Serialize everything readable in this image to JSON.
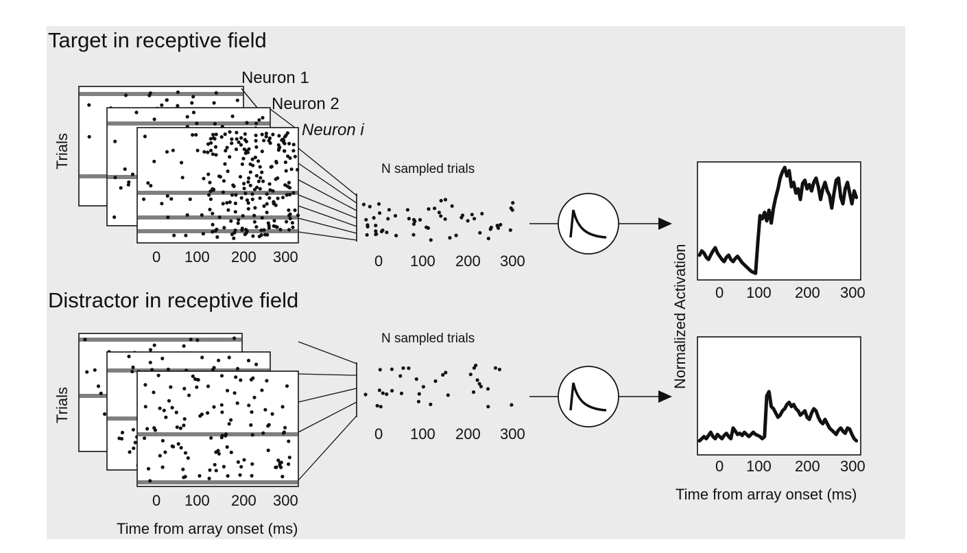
{
  "sections": {
    "top": {
      "title": "Target in receptive field",
      "neurons": [
        "Neuron 1",
        "Neuron 2",
        "Neuron i"
      ],
      "sampled_label": "N sampled trials"
    },
    "bottom": {
      "title": "Distractor in receptive field",
      "sampled_label": "N sampled trials"
    }
  },
  "raster": {
    "ylabel": "Trials",
    "xlabel": "Time from array onset (ms)",
    "xticks": [
      "0",
      "100",
      "200",
      "300"
    ]
  },
  "activation": {
    "ylabel": "Normalized Activation",
    "xlabel": "Time from array onset (ms)",
    "xticks": [
      "0",
      "100",
      "200",
      "300"
    ]
  },
  "chart_data": [
    {
      "type": "line",
      "panel": "target",
      "x": [
        -50,
        -45,
        -40,
        -35,
        -30,
        -25,
        -20,
        -15,
        -10,
        -5,
        0,
        5,
        10,
        15,
        20,
        25,
        30,
        35,
        40,
        45,
        50,
        55,
        60,
        65,
        70,
        75,
        80,
        85,
        90,
        95,
        100,
        105,
        110,
        115,
        120,
        125,
        130,
        135,
        140,
        145,
        150,
        155,
        160,
        165,
        170,
        175,
        180,
        185,
        190,
        195,
        200,
        205,
        210,
        215,
        220,
        225,
        230,
        235,
        240,
        245,
        250,
        255,
        260,
        265,
        270,
        275,
        280,
        285,
        290,
        295,
        300
      ],
      "y": [
        0.18,
        0.22,
        0.2,
        0.16,
        0.14,
        0.18,
        0.22,
        0.25,
        0.2,
        0.17,
        0.14,
        0.12,
        0.16,
        0.18,
        0.14,
        0.12,
        0.15,
        0.17,
        0.14,
        0.11,
        0.09,
        0.07,
        0.05,
        0.03,
        0.02,
        0.01,
        0.3,
        0.55,
        0.52,
        0.58,
        0.5,
        0.6,
        0.48,
        0.62,
        0.72,
        0.8,
        0.9,
        0.96,
        1.0,
        0.92,
        0.97,
        0.82,
        0.86,
        0.76,
        0.8,
        0.7,
        0.85,
        0.88,
        0.8,
        0.84,
        0.78,
        0.86,
        0.9,
        0.82,
        0.7,
        0.8,
        0.86,
        0.78,
        0.74,
        0.62,
        0.76,
        0.88,
        0.9,
        0.72,
        0.66,
        0.8,
        0.86,
        0.76,
        0.66,
        0.78,
        0.72
      ],
      "xlim": [
        -50,
        305
      ],
      "xticks": [
        0,
        100,
        200,
        300
      ]
    },
    {
      "type": "line",
      "panel": "distractor",
      "x": [
        -50,
        -45,
        -40,
        -35,
        -30,
        -25,
        -20,
        -15,
        -10,
        -5,
        0,
        5,
        10,
        15,
        20,
        25,
        30,
        35,
        40,
        45,
        50,
        55,
        60,
        65,
        70,
        75,
        80,
        85,
        90,
        95,
        100,
        105,
        110,
        115,
        120,
        125,
        130,
        135,
        140,
        145,
        150,
        155,
        160,
        165,
        170,
        175,
        180,
        185,
        190,
        195,
        200,
        205,
        210,
        215,
        220,
        225,
        230,
        235,
        240,
        245,
        250,
        255,
        260,
        265,
        270,
        275,
        280,
        285,
        290,
        295,
        300
      ],
      "y": [
        0.08,
        0.1,
        0.12,
        0.1,
        0.13,
        0.16,
        0.12,
        0.1,
        0.14,
        0.12,
        0.1,
        0.13,
        0.15,
        0.12,
        0.1,
        0.2,
        0.17,
        0.14,
        0.15,
        0.13,
        0.16,
        0.14,
        0.12,
        0.14,
        0.16,
        0.14,
        0.13,
        0.12,
        0.1,
        0.12,
        0.5,
        0.54,
        0.4,
        0.38,
        0.34,
        0.3,
        0.32,
        0.36,
        0.38,
        0.42,
        0.44,
        0.4,
        0.42,
        0.38,
        0.36,
        0.32,
        0.34,
        0.36,
        0.3,
        0.28,
        0.34,
        0.38,
        0.36,
        0.3,
        0.26,
        0.24,
        0.28,
        0.24,
        0.2,
        0.18,
        0.16,
        0.14,
        0.18,
        0.2,
        0.17,
        0.15,
        0.2,
        0.19,
        0.14,
        0.1,
        0.08
      ],
      "xlim": [
        -50,
        305
      ],
      "xticks": [
        0,
        100,
        200,
        300
      ]
    }
  ]
}
